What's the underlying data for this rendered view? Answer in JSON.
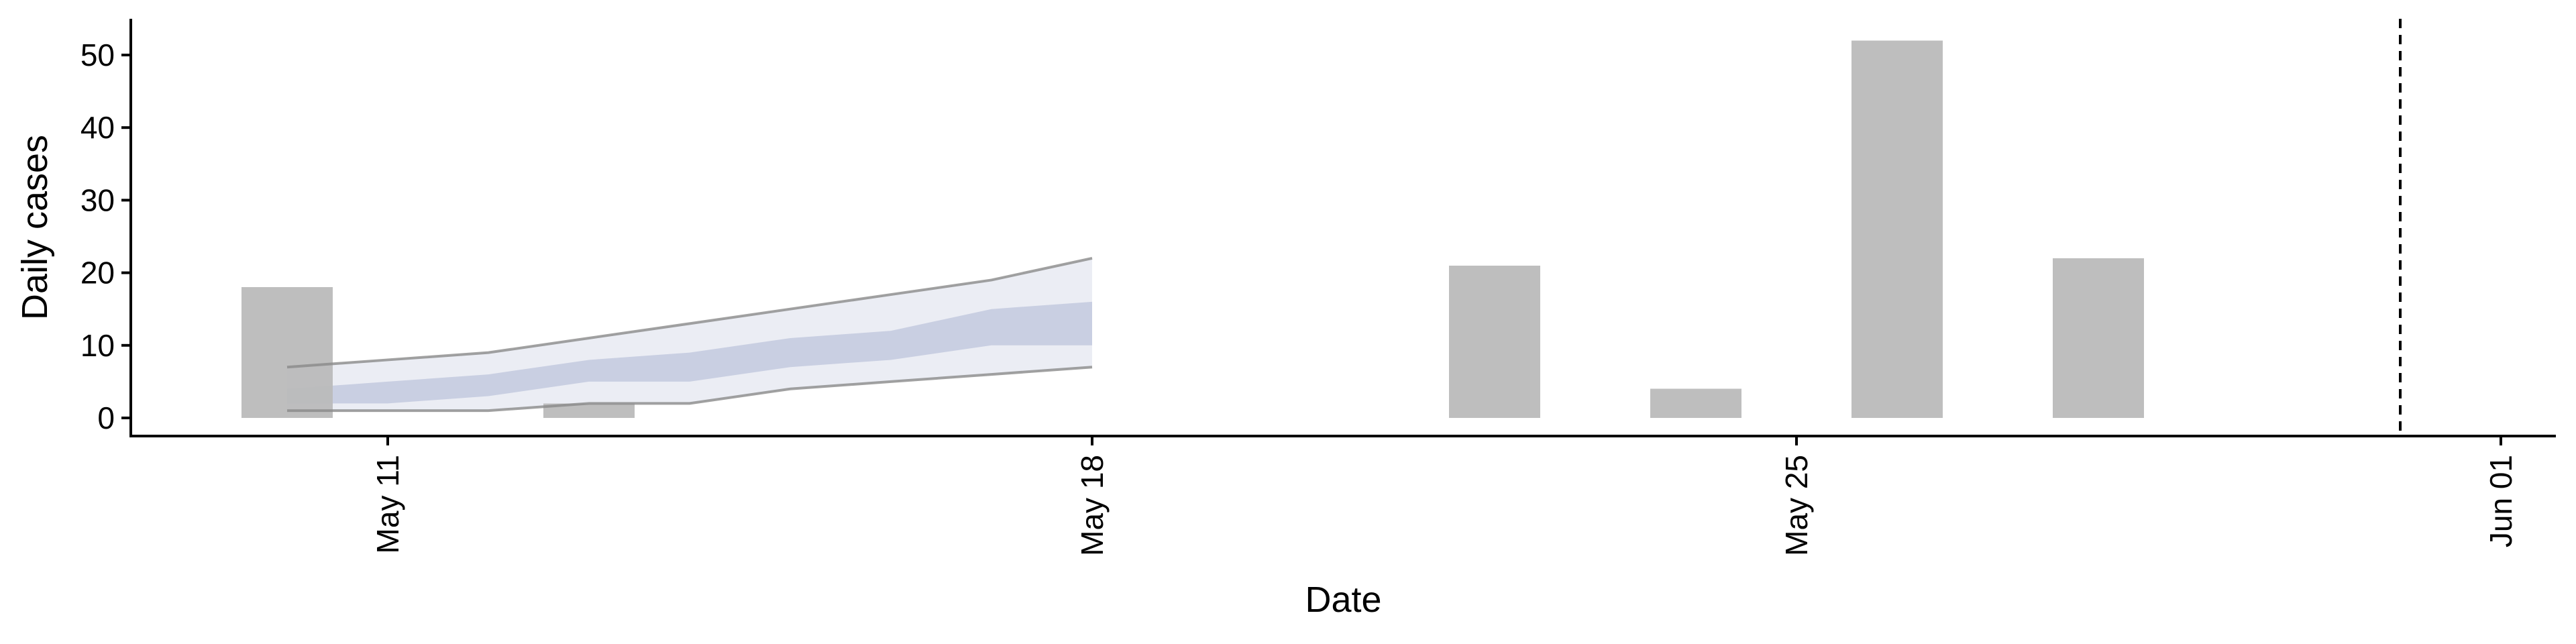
{
  "chart_data": {
    "type": "bar",
    "title": "",
    "xlabel": "Date",
    "ylabel": "Daily cases",
    "x_axis_type": "date",
    "xlim": [
      "2024-05-07",
      "2024-06-01"
    ],
    "ylim": [
      0,
      55
    ],
    "y_ticks": [
      0,
      10,
      20,
      30,
      40,
      50
    ],
    "x_ticks": [
      {
        "date": "2024-05-11",
        "label": "May 11"
      },
      {
        "date": "2024-05-18",
        "label": "May 18"
      },
      {
        "date": "2024-05-25",
        "label": "May 25"
      },
      {
        "date": "2024-06-01",
        "label": "Jun 01"
      }
    ],
    "grid": false,
    "bar_color": "#bababa",
    "bars": [
      {
        "date": "2024-05-10",
        "value": 18
      },
      {
        "date": "2024-05-12",
        "value": 0
      },
      {
        "date": "2024-05-13",
        "value": 2
      },
      {
        "date": "2024-05-22",
        "value": 21
      },
      {
        "date": "2024-05-24",
        "value": 4
      },
      {
        "date": "2024-05-26",
        "value": 52
      },
      {
        "date": "2024-05-28",
        "value": 22
      }
    ],
    "forecast": {
      "dates": [
        "2024-05-10",
        "2024-05-11",
        "2024-05-12",
        "2024-05-13",
        "2024-05-14",
        "2024-05-15",
        "2024-05-16",
        "2024-05-17",
        "2024-05-18"
      ],
      "outer_lower": [
        1,
        1,
        1,
        2,
        2,
        4,
        5,
        6,
        7
      ],
      "outer_upper": [
        7,
        8,
        9,
        11,
        13,
        15,
        17,
        19,
        22
      ],
      "inner_lower": [
        2,
        2,
        3,
        5,
        5,
        7,
        8,
        10,
        10
      ],
      "inner_upper": [
        4,
        5,
        6,
        8,
        9,
        11,
        12,
        15,
        16
      ],
      "outer_color": "#dde1ec",
      "inner_color": "#b3bbd6",
      "bound_line_color": "#8a8a8a"
    },
    "vline": {
      "date": "2024-05-31",
      "style": "dashed",
      "color": "#000000"
    }
  }
}
